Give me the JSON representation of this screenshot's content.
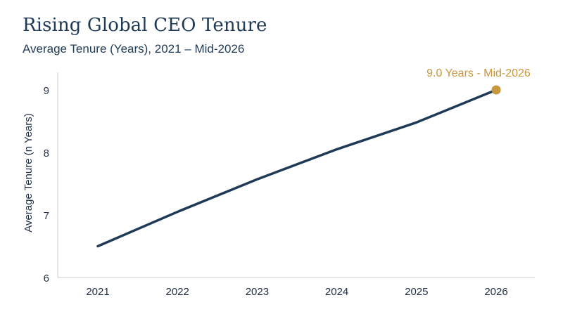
{
  "header": {
    "title": "Rising Global CEO Tenure",
    "subtitle": "Average Tenure (Years), 2021 – Mid-2026"
  },
  "colors": {
    "line": "#1f3a56",
    "highlight": "#c8963e",
    "axis": "#c9ccd1",
    "text": "#1f2f45"
  },
  "chart_data": {
    "type": "line",
    "title": "Rising Global CEO Tenure",
    "subtitle": "Average Tenure (Years), 2021 – Mid-2026",
    "xlabel": "",
    "ylabel": "Average Tenure (n Years)",
    "x_ticks": [
      "2021",
      "2022",
      "2023",
      "2024",
      "2025",
      "2026"
    ],
    "y_ticks": [
      "6",
      "7",
      "8",
      "9"
    ],
    "xlim": [
      2021,
      2026
    ],
    "ylim": [
      6,
      9
    ],
    "grid": false,
    "series": [
      {
        "x": [
          2021,
          2022,
          2023,
          2024,
          2025,
          2026
        ],
        "values": [
          6.5,
          7.05,
          7.57,
          8.05,
          8.48,
          9.0
        ]
      }
    ],
    "annotation": {
      "x": 2026,
      "y": 9.0,
      "text": "9.0 Years - Mid-2026"
    }
  }
}
